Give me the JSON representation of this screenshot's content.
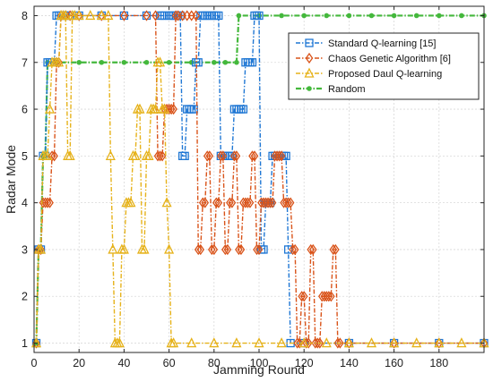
{
  "chart_data": {
    "type": "line",
    "xlabel": "Jamming Round",
    "ylabel": "Radar Mode",
    "xlim": [
      0,
      200
    ],
    "ylim": [
      0.8,
      8.2
    ],
    "xticks": [
      0,
      20,
      40,
      60,
      80,
      100,
      120,
      140,
      160,
      180
    ],
    "yticks": [
      1,
      2,
      3,
      4,
      5,
      6,
      7,
      8
    ],
    "grid": true,
    "legend_position": "top-right",
    "series": [
      {
        "name": "Standard Q-learning [15]",
        "color": "#1f77d4",
        "marker": "square",
        "points": [
          [
            1,
            1
          ],
          [
            2,
            3
          ],
          [
            3,
            3
          ],
          [
            4,
            5
          ],
          [
            5,
            5
          ],
          [
            6,
            7
          ],
          [
            7,
            7
          ],
          [
            8,
            7
          ],
          [
            9,
            7
          ],
          [
            10,
            8
          ],
          [
            11,
            8
          ],
          [
            12,
            8
          ],
          [
            13,
            8
          ],
          [
            14,
            8
          ],
          [
            16,
            8
          ],
          [
            20,
            8
          ],
          [
            30,
            8
          ],
          [
            40,
            8
          ],
          [
            50,
            8
          ],
          [
            56,
            8
          ],
          [
            57,
            8
          ],
          [
            58,
            8
          ],
          [
            60,
            8
          ],
          [
            61,
            8
          ],
          [
            62,
            8
          ],
          [
            63,
            8
          ],
          [
            64,
            8
          ],
          [
            65,
            8
          ],
          [
            66,
            5
          ],
          [
            67,
            5
          ],
          [
            68,
            6
          ],
          [
            69,
            6
          ],
          [
            70,
            6
          ],
          [
            71,
            6
          ],
          [
            72,
            7
          ],
          [
            73,
            7
          ],
          [
            74,
            8
          ],
          [
            75,
            8
          ],
          [
            76,
            8
          ],
          [
            77,
            8
          ],
          [
            78,
            8
          ],
          [
            79,
            8
          ],
          [
            80,
            8
          ],
          [
            81,
            8
          ],
          [
            82,
            8
          ],
          [
            83,
            5
          ],
          [
            84,
            5
          ],
          [
            85,
            5
          ],
          [
            86,
            5
          ],
          [
            87,
            5
          ],
          [
            88,
            5
          ],
          [
            89,
            6
          ],
          [
            90,
            6
          ],
          [
            91,
            6
          ],
          [
            92,
            6
          ],
          [
            93,
            6
          ],
          [
            94,
            7
          ],
          [
            95,
            7
          ],
          [
            96,
            7
          ],
          [
            97,
            7
          ],
          [
            98,
            8
          ],
          [
            99,
            8
          ],
          [
            100,
            8
          ],
          [
            101,
            3
          ],
          [
            102,
            3
          ],
          [
            103,
            4
          ],
          [
            104,
            4
          ],
          [
            105,
            4
          ],
          [
            106,
            5
          ],
          [
            107,
            5
          ],
          [
            108,
            5
          ],
          [
            109,
            5
          ],
          [
            110,
            5
          ],
          [
            111,
            5
          ],
          [
            112,
            5
          ],
          [
            113,
            3
          ],
          [
            114,
            1
          ],
          [
            120,
            1
          ],
          [
            140,
            1
          ],
          [
            160,
            1
          ],
          [
            180,
            1
          ],
          [
            200,
            1
          ]
        ]
      },
      {
        "name": "Chaos Genetic Algorithm [6]",
        "color": "#d95319",
        "marker": "diamond",
        "points": [
          [
            1,
            1
          ],
          [
            2,
            3
          ],
          [
            3,
            3
          ],
          [
            4,
            4
          ],
          [
            5,
            4
          ],
          [
            6,
            4
          ],
          [
            7,
            4
          ],
          [
            8,
            5
          ],
          [
            9,
            5
          ],
          [
            10,
            7
          ],
          [
            11,
            7
          ],
          [
            12,
            8
          ],
          [
            14,
            8
          ],
          [
            16,
            8
          ],
          [
            20,
            8
          ],
          [
            30,
            8
          ],
          [
            40,
            8
          ],
          [
            50,
            8
          ],
          [
            54,
            8
          ],
          [
            55,
            5
          ],
          [
            56,
            5
          ],
          [
            57,
            5
          ],
          [
            58,
            6
          ],
          [
            59,
            6
          ],
          [
            60,
            6
          ],
          [
            61,
            6
          ],
          [
            62,
            6
          ],
          [
            63,
            8
          ],
          [
            64,
            8
          ],
          [
            66,
            8
          ],
          [
            68,
            8
          ],
          [
            70,
            8
          ],
          [
            72,
            8
          ],
          [
            73,
            3
          ],
          [
            74,
            3
          ],
          [
            75,
            4
          ],
          [
            76,
            4
          ],
          [
            77,
            5
          ],
          [
            78,
            5
          ],
          [
            79,
            3
          ],
          [
            80,
            3
          ],
          [
            81,
            4
          ],
          [
            82,
            4
          ],
          [
            83,
            5
          ],
          [
            84,
            5
          ],
          [
            85,
            3
          ],
          [
            86,
            3
          ],
          [
            87,
            4
          ],
          [
            88,
            4
          ],
          [
            89,
            5
          ],
          [
            90,
            5
          ],
          [
            91,
            3
          ],
          [
            92,
            3
          ],
          [
            93,
            4
          ],
          [
            94,
            4
          ],
          [
            95,
            4
          ],
          [
            96,
            4
          ],
          [
            97,
            5
          ],
          [
            98,
            5
          ],
          [
            99,
            3
          ],
          [
            100,
            3
          ],
          [
            101,
            4
          ],
          [
            102,
            4
          ],
          [
            103,
            4
          ],
          [
            104,
            4
          ],
          [
            105,
            4
          ],
          [
            106,
            4
          ],
          [
            107,
            5
          ],
          [
            108,
            5
          ],
          [
            109,
            5
          ],
          [
            110,
            5
          ],
          [
            111,
            4
          ],
          [
            112,
            4
          ],
          [
            113,
            4
          ],
          [
            114,
            4
          ],
          [
            115,
            3
          ],
          [
            116,
            3
          ],
          [
            117,
            1
          ],
          [
            118,
            1
          ],
          [
            119,
            2
          ],
          [
            120,
            2
          ],
          [
            121,
            1
          ],
          [
            122,
            1
          ],
          [
            123,
            3
          ],
          [
            124,
            3
          ],
          [
            125,
            1
          ],
          [
            126,
            1
          ],
          [
            127,
            1
          ],
          [
            128,
            2
          ],
          [
            129,
            2
          ],
          [
            130,
            2
          ],
          [
            131,
            2
          ],
          [
            132,
            2
          ],
          [
            133,
            3
          ],
          [
            134,
            3
          ],
          [
            135,
            1
          ],
          [
            136,
            1
          ],
          [
            140,
            1
          ],
          [
            160,
            1
          ],
          [
            180,
            1
          ],
          [
            200,
            1
          ]
        ]
      },
      {
        "name": "Proposed Daul Q-learning",
        "color": "#e6b21a",
        "marker": "triangle",
        "points": [
          [
            1,
            1
          ],
          [
            2,
            3
          ],
          [
            3,
            3
          ],
          [
            4,
            5
          ],
          [
            5,
            5
          ],
          [
            6,
            5
          ],
          [
            7,
            6
          ],
          [
            8,
            7
          ],
          [
            9,
            7
          ],
          [
            10,
            7
          ],
          [
            11,
            7
          ],
          [
            12,
            8
          ],
          [
            13,
            8
          ],
          [
            14,
            8
          ],
          [
            15,
            5
          ],
          [
            16,
            5
          ],
          [
            17,
            8
          ],
          [
            18,
            8
          ],
          [
            20,
            8
          ],
          [
            25,
            8
          ],
          [
            30,
            8
          ],
          [
            33,
            8
          ],
          [
            34,
            5
          ],
          [
            35,
            3
          ],
          [
            36,
            1
          ],
          [
            37,
            1
          ],
          [
            38,
            1
          ],
          [
            39,
            3
          ],
          [
            40,
            3
          ],
          [
            41,
            4
          ],
          [
            42,
            4
          ],
          [
            43,
            4
          ],
          [
            44,
            5
          ],
          [
            45,
            5
          ],
          [
            46,
            6
          ],
          [
            47,
            6
          ],
          [
            48,
            3
          ],
          [
            49,
            3
          ],
          [
            50,
            5
          ],
          [
            51,
            5
          ],
          [
            52,
            6
          ],
          [
            53,
            6
          ],
          [
            54,
            6
          ],
          [
            55,
            7
          ],
          [
            56,
            7
          ],
          [
            57,
            6
          ],
          [
            58,
            6
          ],
          [
            59,
            4
          ],
          [
            60,
            3
          ],
          [
            61,
            1
          ],
          [
            62,
            1
          ],
          [
            70,
            1
          ],
          [
            80,
            1
          ],
          [
            90,
            1
          ],
          [
            100,
            1
          ],
          [
            110,
            1
          ],
          [
            120,
            1
          ],
          [
            130,
            1
          ],
          [
            140,
            1
          ],
          [
            150,
            1
          ],
          [
            160,
            1
          ],
          [
            170,
            1
          ],
          [
            180,
            1
          ],
          [
            190,
            1
          ],
          [
            200,
            1
          ]
        ]
      },
      {
        "name": "Random",
        "color": "#44b83c",
        "marker": "point",
        "points": [
          [
            1,
            1
          ],
          [
            2,
            3
          ],
          [
            3,
            3
          ],
          [
            4,
            5
          ],
          [
            5,
            5
          ],
          [
            6,
            7
          ],
          [
            10,
            7
          ],
          [
            20,
            7
          ],
          [
            30,
            7
          ],
          [
            40,
            7
          ],
          [
            50,
            7
          ],
          [
            60,
            7
          ],
          [
            70,
            7
          ],
          [
            80,
            7
          ],
          [
            85,
            7
          ],
          [
            90,
            7
          ],
          [
            91,
            8
          ],
          [
            100,
            8
          ],
          [
            110,
            8
          ],
          [
            120,
            8
          ],
          [
            130,
            8
          ],
          [
            140,
            8
          ],
          [
            150,
            8
          ],
          [
            160,
            8
          ],
          [
            170,
            8
          ],
          [
            180,
            8
          ],
          [
            190,
            8
          ],
          [
            200,
            8
          ]
        ]
      }
    ]
  }
}
